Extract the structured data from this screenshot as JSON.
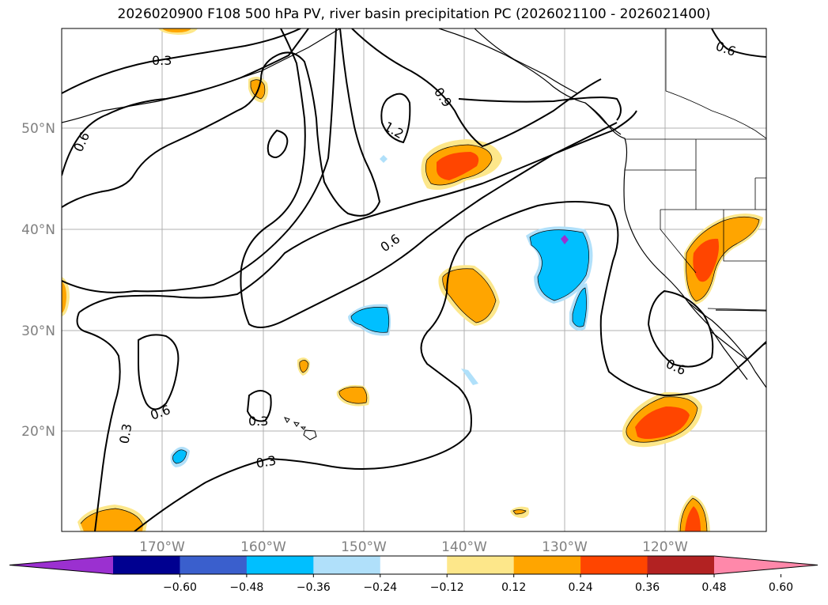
{
  "title": "2026020900 F108 500 hPa PV, river basin precipitation PC (2026021100 - 2026021400)",
  "map": {
    "lat_labels": [
      "50°N",
      "40°N",
      "30°N",
      "20°N"
    ],
    "lon_labels": [
      "170°W",
      "160°W",
      "150°W",
      "140°W",
      "130°W",
      "120°W"
    ],
    "contour_labels": [
      "0.3",
      "0.6",
      "0.9",
      "1.2",
      "0.6",
      "0.6",
      "0.3",
      "0.3",
      "0.6",
      "0.3",
      "0.6"
    ]
  },
  "colorbar": {
    "ticks": [
      "−0.60",
      "−0.48",
      "−0.36",
      "−0.24",
      "−0.12",
      "0.12",
      "0.24",
      "0.36",
      "0.48",
      "0.60"
    ],
    "colors": [
      "#9b30d0",
      "#000090",
      "#3a5fcd",
      "#00bfff",
      "#b0e0fa",
      "#ffffff",
      "#fde78a",
      "#ffa500",
      "#ff4500",
      "#b22222",
      "#ff88aa"
    ]
  },
  "colors": {
    "grid": "#b0b0b0",
    "contour": "#000000",
    "coast": "#000000"
  }
}
